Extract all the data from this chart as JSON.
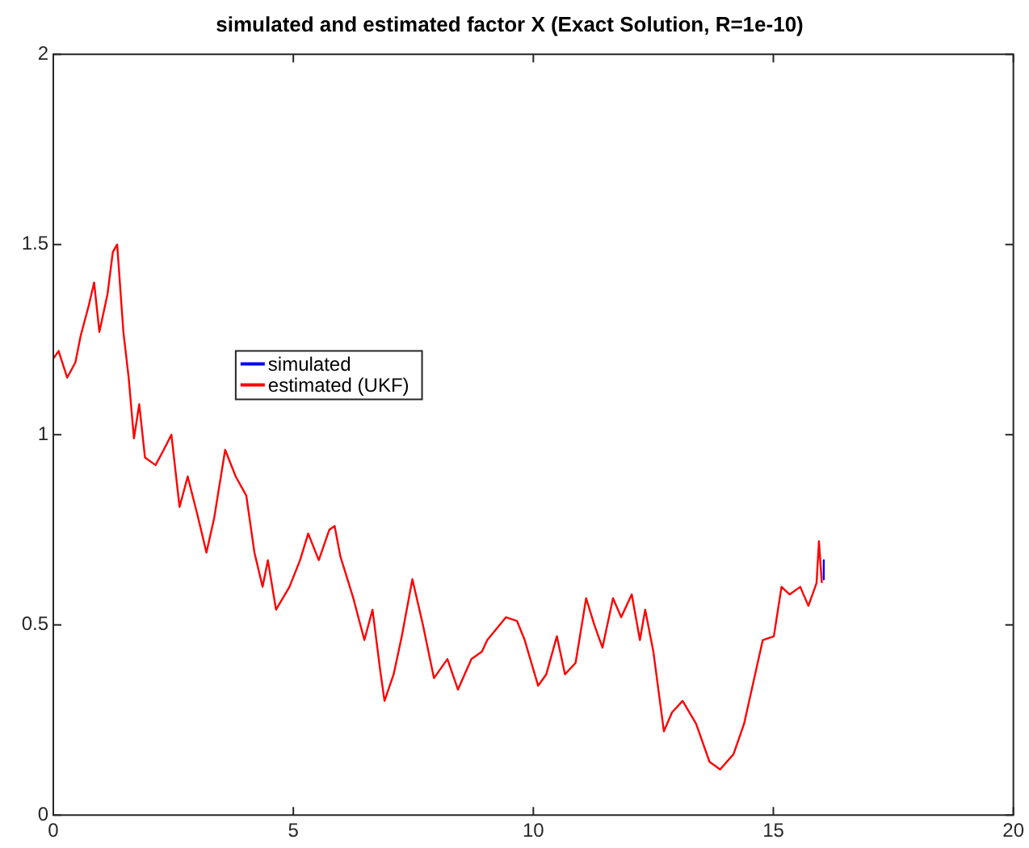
{
  "chart_data": {
    "type": "line",
    "title": "simulated and estimated factor X (Exact Solution, R=1e-10)",
    "xlim": [
      0,
      20
    ],
    "xticks": [
      0,
      5,
      10,
      15,
      20
    ],
    "ylim": [
      0,
      2
    ],
    "yticks": [
      0,
      0.5,
      1,
      1.5,
      2
    ],
    "grid": false,
    "legend": "top left",
    "marker": "none",
    "line_style": "solid",
    "x": [
      0,
      0.11,
      0.29,
      0.46,
      0.57,
      0.74,
      0.85,
      0.96,
      1.13,
      1.24,
      1.33,
      1.46,
      1.57,
      1.68,
      1.79,
      1.91,
      2.13,
      2.3,
      2.46,
      2.63,
      2.8,
      3.02,
      3.19,
      3.35,
      3.58,
      3.8,
      4.02,
      4.19,
      4.36,
      4.47,
      4.64,
      4.92,
      5.14,
      5.31,
      5.53,
      5.75,
      5.86,
      5.98,
      6.25,
      6.48,
      6.65,
      6.81,
      6.9,
      7.09,
      7.26,
      7.48,
      7.7,
      7.93,
      8.21,
      8.43,
      8.71,
      8.93,
      9.04,
      9.43,
      9.66,
      9.82,
      10.1,
      10.27,
      10.49,
      10.66,
      10.88,
      11.1,
      11.27,
      11.44,
      11.66,
      11.83,
      12.05,
      12.22,
      12.33,
      12.5,
      12.72,
      12.89,
      13.11,
      13.39,
      13.67,
      13.89,
      14.17,
      14.39,
      14.62,
      14.78,
      15.01,
      15.17,
      15.34,
      15.56,
      15.73,
      15.9,
      15.95,
      16.01
    ],
    "series": [
      {
        "name": "simulated",
        "color": "#0000ff",
        "x": [
          16.05,
          16.05
        ],
        "values": [
          0.67,
          0.62
        ]
      },
      {
        "name": "estimated (UKF)",
        "color": "#ff0000",
        "values": [
          1.2,
          1.22,
          1.15,
          1.19,
          1.26,
          1.34,
          1.4,
          1.27,
          1.37,
          1.48,
          1.5,
          1.27,
          1.15,
          0.99,
          1.08,
          0.94,
          0.92,
          0.96,
          1,
          0.81,
          0.89,
          0.78,
          0.69,
          0.78,
          0.96,
          0.89,
          0.84,
          0.69,
          0.6,
          0.67,
          0.54,
          0.6,
          0.67,
          0.74,
          0.67,
          0.75,
          0.76,
          0.68,
          0.57,
          0.46,
          0.54,
          0.38,
          0.3,
          0.37,
          0.47,
          0.62,
          0.5,
          0.36,
          0.41,
          0.33,
          0.41,
          0.43,
          0.46,
          0.52,
          0.51,
          0.46,
          0.34,
          0.37,
          0.47,
          0.37,
          0.4,
          0.57,
          0.5,
          0.44,
          0.57,
          0.52,
          0.58,
          0.46,
          0.54,
          0.43,
          0.22,
          0.27,
          0.3,
          0.24,
          0.14,
          0.12,
          0.16,
          0.24,
          0.37,
          0.46,
          0.47,
          0.6,
          0.58,
          0.6,
          0.55,
          0.61,
          0.72,
          0.61
        ]
      }
    ]
  }
}
